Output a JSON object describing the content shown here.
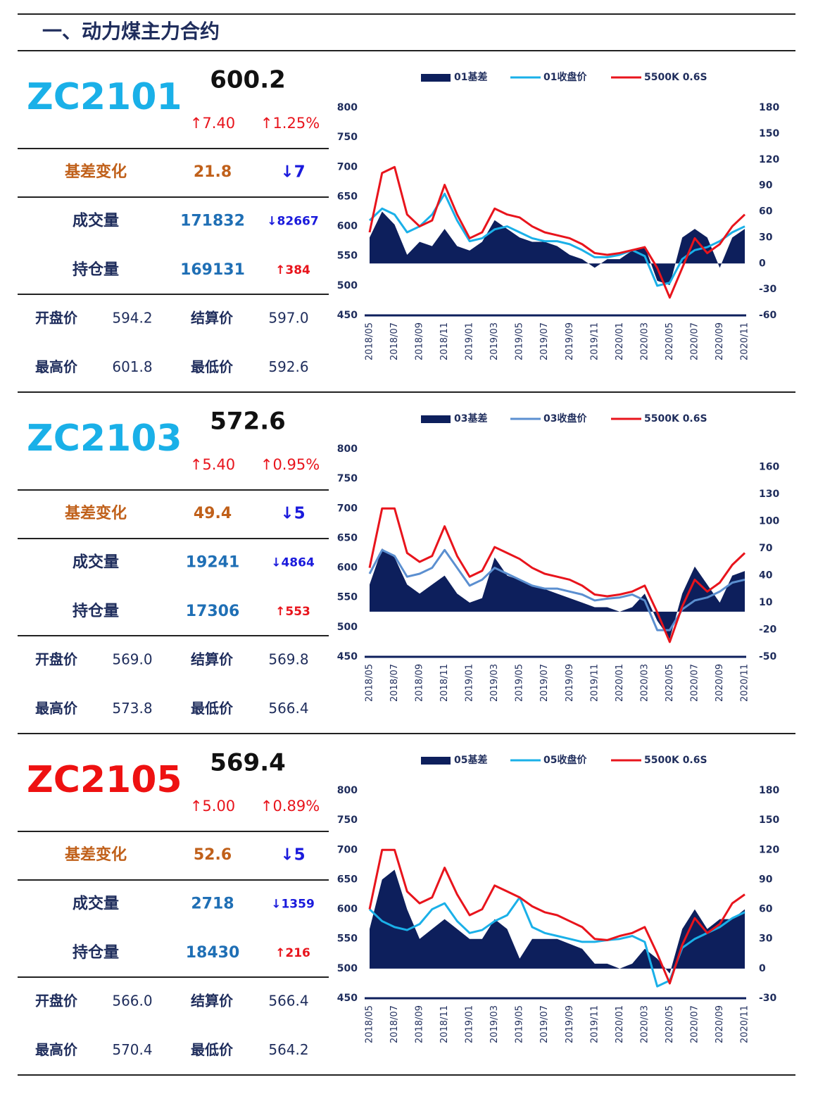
{
  "header": {
    "title": "一、动力煤主力合约"
  },
  "panels": [
    {
      "code": "ZC2101",
      "code_color": "#1ab0e8",
      "price": "600.2",
      "change": "↑7.40",
      "change_pct": "↑1.25%",
      "rows": [
        {
          "label": "基差变化",
          "value": "21.8",
          "delta": "↓7"
        },
        {
          "label": "成交量",
          "value": "171832",
          "delta": "↓82667"
        },
        {
          "label": "持仓量",
          "value": "169131",
          "delta": "↑384"
        }
      ],
      "prices": [
        [
          "开盘价",
          "594.2",
          "结算价",
          "597.0"
        ],
        [
          "最高价",
          "601.8",
          "最低价",
          "592.6"
        ]
      ]
    },
    {
      "code": "ZC2103",
      "code_color": "#1ab0e8",
      "price": "572.6",
      "change": "↑5.40",
      "change_pct": "↑0.95%",
      "rows": [
        {
          "label": "基差变化",
          "value": "49.4",
          "delta": "↓5"
        },
        {
          "label": "成交量",
          "value": "19241",
          "delta": "↓4864"
        },
        {
          "label": "持仓量",
          "value": "17306",
          "delta": "↑553"
        }
      ],
      "prices": [
        [
          "开盘价",
          "569.0",
          "结算价",
          "569.8"
        ],
        [
          "最高价",
          "573.8",
          "最低价",
          "566.4"
        ]
      ]
    },
    {
      "code": "ZC2105",
      "code_color": "#ee1111",
      "price": "569.4",
      "change": "↑5.00",
      "change_pct": "↑0.89%",
      "rows": [
        {
          "label": "基差变化",
          "value": "52.6",
          "delta": "↓5"
        },
        {
          "label": "成交量",
          "value": "2718",
          "delta": "↓1359"
        },
        {
          "label": "持仓量",
          "value": "18430",
          "delta": "↑216"
        }
      ],
      "prices": [
        [
          "开盘价",
          "566.0",
          "结算价",
          "566.4"
        ],
        [
          "最高价",
          "570.4",
          "最低价",
          "564.2"
        ]
      ]
    }
  ],
  "chart_data": [
    {
      "type": "combo",
      "categories": [
        "2018/05",
        null,
        "2018/07",
        null,
        "2018/09",
        null,
        "2018/11",
        null,
        "2019/01",
        null,
        "2019/03",
        null,
        "2019/05",
        null,
        "2019/07",
        null,
        "2019/09",
        null,
        "2019/11",
        null,
        "2020/01",
        null,
        "2020/03",
        null,
        "2020/05",
        null,
        "2020/07",
        null,
        "2020/09",
        null,
        "2020/11"
      ],
      "ylim": [
        450,
        800
      ],
      "yticks": [
        450,
        500,
        550,
        600,
        650,
        700,
        750,
        800
      ],
      "y2lim": [
        -60,
        180
      ],
      "y2ticks": [
        -60,
        -30,
        0,
        30,
        60,
        90,
        120,
        150,
        180
      ],
      "series": [
        {
          "name": "01基差",
          "color": "#0d1f5c",
          "type": "area",
          "axis": "y2",
          "values": [
            30,
            60,
            45,
            10,
            25,
            20,
            40,
            20,
            15,
            25,
            50,
            40,
            30,
            25,
            25,
            20,
            10,
            5,
            -5,
            5,
            5,
            15,
            20,
            -20,
            -25,
            30,
            40,
            30,
            -5,
            30,
            40
          ]
        },
        {
          "name": "01收盘价",
          "color": "#1ab0e8",
          "values": [
            610,
            630,
            620,
            590,
            600,
            620,
            655,
            610,
            575,
            580,
            595,
            600,
            590,
            580,
            575,
            575,
            570,
            560,
            548,
            548,
            552,
            560,
            550,
            500,
            505,
            545,
            560,
            565,
            575,
            590,
            600
          ]
        },
        {
          "name": "5500K 0.6S",
          "color": "#e8141c",
          "values": [
            590,
            690,
            700,
            620,
            600,
            610,
            670,
            620,
            580,
            590,
            630,
            620,
            615,
            600,
            590,
            585,
            580,
            570,
            555,
            552,
            555,
            560,
            565,
            530,
            480,
            530,
            580,
            555,
            570,
            600,
            620
          ]
        }
      ]
    },
    {
      "type": "combo",
      "categories": [
        "2018/05",
        null,
        "2018/07",
        null,
        "2018/09",
        null,
        "2018/11",
        null,
        "2019/01",
        null,
        "2019/03",
        null,
        "2019/05",
        null,
        "2019/07",
        null,
        "2019/09",
        null,
        "2019/11",
        null,
        "2020/01",
        null,
        "2020/03",
        null,
        "2020/05",
        null,
        "2020/07",
        null,
        "2020/09",
        null,
        "2020/11"
      ],
      "ylim": [
        450,
        800
      ],
      "yticks": [
        450,
        500,
        550,
        600,
        650,
        700,
        750,
        800
      ],
      "y2lim": [
        -50,
        180
      ],
      "y2ticks": [
        -50,
        -20,
        10,
        40,
        70,
        100,
        130,
        160
      ],
      "series": [
        {
          "name": "03基差",
          "color": "#0d1f5c",
          "type": "area",
          "axis": "y2",
          "values": [
            30,
            70,
            60,
            30,
            20,
            30,
            40,
            20,
            10,
            15,
            60,
            40,
            35,
            30,
            25,
            20,
            15,
            10,
            5,
            5,
            0,
            5,
            20,
            -10,
            -30,
            20,
            50,
            30,
            10,
            40,
            45
          ]
        },
        {
          "name": "03收盘价",
          "color": "#5b8fd0",
          "values": [
            590,
            630,
            620,
            585,
            590,
            600,
            630,
            600,
            570,
            580,
            600,
            590,
            580,
            570,
            565,
            565,
            560,
            555,
            545,
            548,
            550,
            555,
            545,
            495,
            495,
            530,
            545,
            550,
            560,
            575,
            580
          ]
        },
        {
          "name": "5500K 0.6S",
          "color": "#e8141c",
          "values": [
            600,
            700,
            700,
            625,
            610,
            620,
            670,
            620,
            585,
            595,
            635,
            625,
            615,
            600,
            590,
            585,
            580,
            570,
            555,
            552,
            555,
            560,
            570,
            525,
            475,
            535,
            580,
            560,
            575,
            605,
            625
          ]
        }
      ]
    },
    {
      "type": "combo",
      "categories": [
        "2018/05",
        null,
        "2018/07",
        null,
        "2018/09",
        null,
        "2018/11",
        null,
        "2019/01",
        null,
        "2019/03",
        null,
        "2019/05",
        null,
        "2019/07",
        null,
        "2019/09",
        null,
        "2019/11",
        null,
        "2020/01",
        null,
        "2020/03",
        null,
        "2020/05",
        null,
        "2020/07",
        null,
        "2020/09",
        null,
        "2020/11"
      ],
      "ylim": [
        450,
        800
      ],
      "yticks": [
        450,
        500,
        550,
        600,
        650,
        700,
        750,
        800
      ],
      "y2lim": [
        -30,
        180
      ],
      "y2ticks": [
        -30,
        0,
        30,
        60,
        90,
        120,
        150,
        180
      ],
      "series": [
        {
          "name": "05基差",
          "color": "#0d1f5c",
          "type": "area",
          "axis": "y2",
          "values": [
            40,
            90,
            100,
            60,
            30,
            40,
            50,
            40,
            30,
            30,
            50,
            40,
            10,
            30,
            30,
            30,
            25,
            20,
            5,
            5,
            0,
            5,
            20,
            10,
            -5,
            40,
            60,
            40,
            50,
            50,
            60
          ]
        },
        {
          "name": "05收盘价",
          "color": "#1ab0e8",
          "values": [
            600,
            580,
            570,
            565,
            575,
            600,
            610,
            580,
            560,
            565,
            580,
            590,
            620,
            570,
            560,
            555,
            550,
            545,
            545,
            548,
            550,
            555,
            545,
            470,
            480,
            535,
            550,
            560,
            570,
            585,
            595
          ]
        },
        {
          "name": "5500K 0.6S",
          "color": "#e8141c",
          "values": [
            600,
            700,
            700,
            630,
            610,
            620,
            670,
            625,
            590,
            600,
            640,
            630,
            620,
            605,
            595,
            590,
            580,
            570,
            550,
            548,
            555,
            560,
            570,
            525,
            475,
            540,
            585,
            560,
            575,
            610,
            625
          ]
        }
      ]
    }
  ]
}
